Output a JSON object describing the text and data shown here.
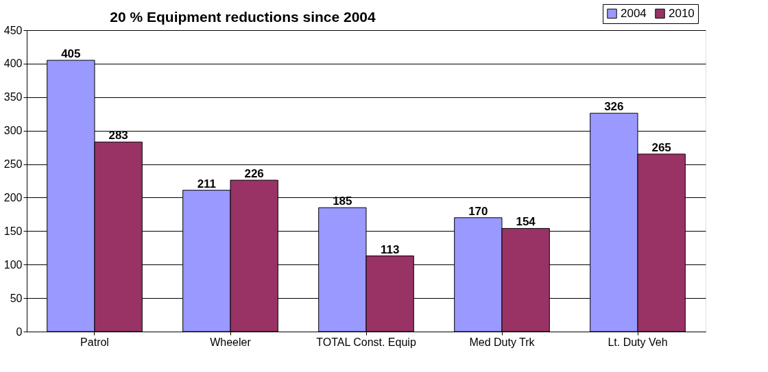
{
  "chart_data": {
    "type": "bar",
    "title": "20 % Equipment reductions since 2004",
    "categories": [
      "Patrol",
      "Wheeler",
      "TOTAL Const. Equip",
      "Med Duty Trk",
      "Lt. Duty Veh"
    ],
    "series": [
      {
        "name": "2004",
        "color": "#9999ff",
        "values": [
          405,
          211,
          185,
          170,
          326
        ]
      },
      {
        "name": "2010",
        "color": "#993366",
        "values": [
          283,
          226,
          113,
          154,
          265
        ]
      }
    ],
    "ylim": [
      0,
      450
    ],
    "yticks": [
      0,
      50,
      100,
      150,
      200,
      250,
      300,
      350,
      400,
      450
    ],
    "grid": "y",
    "legend": "top right",
    "data_labels": true
  }
}
